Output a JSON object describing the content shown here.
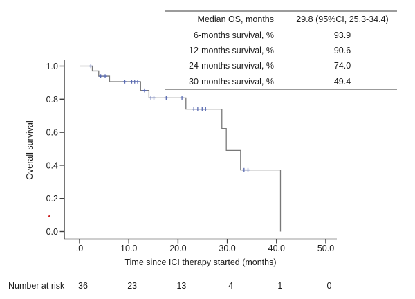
{
  "stats_table": {
    "rows": [
      {
        "label": "Median OS, months",
        "value": "29.8 (95%CI, 25.3-34.4)"
      },
      {
        "label": "6-months survival, %",
        "value": "93.9"
      },
      {
        "label": "12-months survival, %",
        "value": "90.6"
      },
      {
        "label": "24-months survival, %",
        "value": "74.0"
      },
      {
        "label": "30-months survival, %",
        "value": "49.4"
      }
    ]
  },
  "chart_data": {
    "type": "line",
    "subtype": "kaplan-meier-step",
    "title": "",
    "xlabel": "Time since ICI therapy started (months)",
    "ylabel": "Overall survival",
    "xlim": [
      0,
      50
    ],
    "ylim": [
      0,
      1
    ],
    "x_ticks": [
      0,
      10,
      20,
      30,
      40,
      50
    ],
    "x_tick_labels": [
      ".0",
      "10.0",
      "20.0",
      "30.0",
      "40.0",
      "50.0"
    ],
    "y_ticks": [
      0,
      0.2,
      0.4,
      0.6,
      0.8,
      1.0
    ],
    "y_tick_labels": [
      "0.0",
      "0.2",
      "0.4",
      "0.6",
      "0.8",
      "1.0"
    ],
    "grid": false,
    "legend": "none",
    "series": [
      {
        "name": "Overall survival",
        "color": "#787878",
        "steps": [
          [
            0.0,
            1.0
          ],
          [
            2.6,
            0.971
          ],
          [
            3.9,
            0.939
          ],
          [
            6.1,
            0.906
          ],
          [
            12.4,
            0.853
          ],
          [
            14.1,
            0.808
          ],
          [
            21.6,
            0.74
          ],
          [
            28.9,
            0.623
          ],
          [
            29.8,
            0.49
          ],
          [
            32.7,
            0.372
          ],
          [
            40.8,
            0.0
          ]
        ]
      }
    ],
    "censor_marks": {
      "color": "#5b6cb2",
      "points": [
        [
          2.3,
          1.0
        ],
        [
          4.3,
          0.939
        ],
        [
          5.2,
          0.939
        ],
        [
          9.2,
          0.906
        ],
        [
          10.6,
          0.906
        ],
        [
          11.2,
          0.906
        ],
        [
          11.8,
          0.906
        ],
        [
          13.2,
          0.853
        ],
        [
          14.5,
          0.808
        ],
        [
          15.1,
          0.808
        ],
        [
          17.6,
          0.808
        ],
        [
          20.8,
          0.808
        ],
        [
          23.2,
          0.74
        ],
        [
          24.0,
          0.74
        ],
        [
          24.9,
          0.74
        ],
        [
          25.6,
          0.74
        ],
        [
          33.4,
          0.372
        ],
        [
          34.2,
          0.372
        ]
      ]
    },
    "number_at_risk": {
      "label": "Number at risk",
      "times": [
        0,
        10,
        20,
        30,
        40,
        50
      ],
      "values": [
        "36",
        "23",
        "13",
        "4",
        "1",
        "0"
      ]
    }
  },
  "annotations": {
    "stray_dot_color": "#cc2222",
    "axis_color": "#3c3c3c",
    "rule_color": "#9b9b9b"
  }
}
